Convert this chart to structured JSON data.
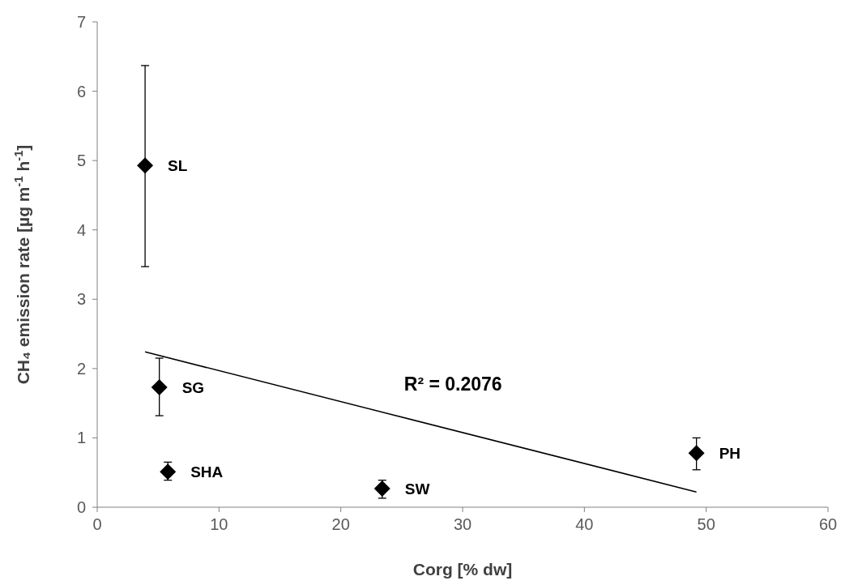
{
  "chart_data": {
    "type": "scatter",
    "xlabel": "Corg [% dw]",
    "ylabel": "CH₄ emission rate [µg m$^{-1}$ h$^{-1}$]",
    "xlim": [
      0,
      60
    ],
    "xticks": [
      0,
      10,
      20,
      30,
      40,
      50,
      60
    ],
    "ylim": [
      0,
      7
    ],
    "yticks": [
      0,
      1,
      2,
      3,
      4,
      5,
      6,
      7
    ],
    "grid": false,
    "series": [
      {
        "color": "#000000",
        "marker": "diamond",
        "x": [
          3.93,
          5.1,
          5.8,
          23.4,
          49.2
        ],
        "values": [
          4.93,
          1.73,
          0.51,
          0.27,
          0.78
        ],
        "errors": [
          [
            3.47,
            6.37
          ],
          [
            1.32,
            2.15
          ],
          [
            0.39,
            0.65
          ],
          [
            0.13,
            0.39
          ],
          [
            0.54,
            1.0
          ]
        ]
      },
      {
        "type": "line",
        "color": "#000000",
        "line_style": "solid",
        "marker": "none",
        "x": [
          3.93,
          49.2
        ],
        "values": [
          2.24,
          0.22
        ]
      }
    ],
    "annotations": [
      {
        "text": "SL",
        "x": 3.93,
        "y": 4.93
      },
      {
        "text": "SG",
        "x": 5.1,
        "y": 1.73
      },
      {
        "text": "SHA",
        "x": 5.8,
        "y": 0.51
      },
      {
        "text": "SW",
        "x": 23.4,
        "y": 0.27
      },
      {
        "text": "PH",
        "x": 49.2,
        "y": 0.78
      },
      "R² = 0.2076"
    ]
  }
}
